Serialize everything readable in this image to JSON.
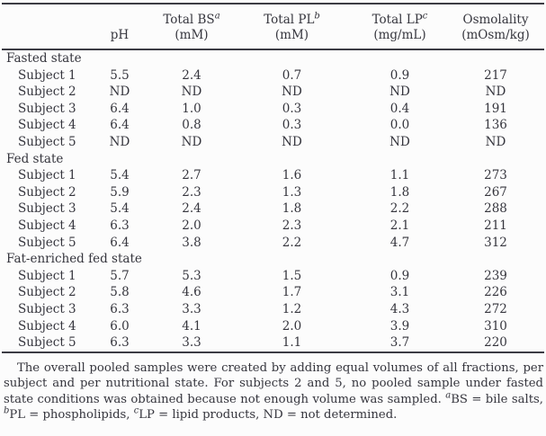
{
  "table": {
    "columns": [
      {
        "line1": "",
        "sup": "",
        "line2": ""
      },
      {
        "line1": "",
        "sup": "",
        "line2": "pH"
      },
      {
        "line1": "Total BS",
        "sup": "a",
        "line2": "(mM)"
      },
      {
        "line1": "Total PL",
        "sup": "b",
        "line2": "(mM)"
      },
      {
        "line1": "Total LP",
        "sup": "c",
        "line2": "(mg/mL)"
      },
      {
        "line1": "Osmolality",
        "sup": "",
        "line2": "(mOsm/kg)"
      }
    ],
    "groups": [
      {
        "label": "Fasted state",
        "rows": [
          {
            "label": "Subject 1",
            "values": [
              "5.5",
              "2.4",
              "0.7",
              "0.9",
              "217"
            ]
          },
          {
            "label": "Subject 2",
            "values": [
              "ND",
              "ND",
              "ND",
              "ND",
              "ND"
            ]
          },
          {
            "label": "Subject 3",
            "values": [
              "6.4",
              "1.0",
              "0.3",
              "0.4",
              "191"
            ]
          },
          {
            "label": "Subject 4",
            "values": [
              "6.4",
              "0.8",
              "0.3",
              "0.0",
              "136"
            ]
          },
          {
            "label": "Subject 5",
            "values": [
              "ND",
              "ND",
              "ND",
              "ND",
              "ND"
            ]
          }
        ]
      },
      {
        "label": "Fed state",
        "rows": [
          {
            "label": "Subject 1",
            "values": [
              "5.4",
              "2.7",
              "1.6",
              "1.1",
              "273"
            ]
          },
          {
            "label": "Subject 2",
            "values": [
              "5.9",
              "2.3",
              "1.3",
              "1.8",
              "267"
            ]
          },
          {
            "label": "Subject 3",
            "values": [
              "5.4",
              "2.4",
              "1.8",
              "2.2",
              "288"
            ]
          },
          {
            "label": "Subject 4",
            "values": [
              "6.3",
              "2.0",
              "2.3",
              "2.1",
              "211"
            ]
          },
          {
            "label": "Subject 5",
            "values": [
              "6.4",
              "3.8",
              "2.2",
              "4.7",
              "312"
            ]
          }
        ]
      },
      {
        "label": "Fat-enriched fed state",
        "rows": [
          {
            "label": "Subject 1",
            "values": [
              "5.7",
              "5.3",
              "1.5",
              "0.9",
              "239"
            ]
          },
          {
            "label": "Subject 2",
            "values": [
              "5.8",
              "4.6",
              "1.7",
              "3.1",
              "226"
            ]
          },
          {
            "label": "Subject 3",
            "values": [
              "6.3",
              "3.3",
              "1.2",
              "4.3",
              "272"
            ]
          },
          {
            "label": "Subject 4",
            "values": [
              "6.0",
              "4.1",
              "2.0",
              "3.9",
              "310"
            ]
          },
          {
            "label": "Subject 5",
            "values": [
              "6.3",
              "3.3",
              "1.1",
              "3.7",
              "220"
            ]
          }
        ]
      }
    ]
  },
  "footnote": {
    "main": "The overall pooled samples were created by adding equal volumes of all fractions, per subject and per nutritional state. For subjects 2 and 5, no pooled sample under fasted state conditions was obtained because not enough volume was sampled. ",
    "sup_a": "a",
    "bs": "BS = bile salts, ",
    "sup_b": "b",
    "pl": "PL = phospholipids, ",
    "sup_c": "c",
    "lp": "LP = lipid products, ND = not determined."
  }
}
